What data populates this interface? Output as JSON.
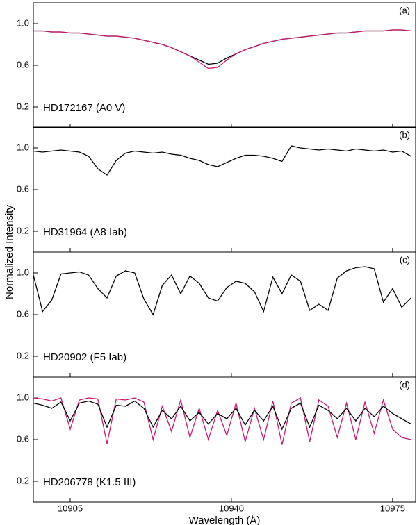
{
  "shared": {
    "ylabel": "Normalized Intensity",
    "xlabel": "Wavelength (Å)"
  },
  "chart_data": [
    {
      "type": "line",
      "annotation": "(a)",
      "label": "HD172167 (A0 V)",
      "x": [
        10897,
        10899,
        10901,
        10903,
        10905,
        10907,
        10909,
        10911,
        10913,
        10915,
        10917,
        10919,
        10921,
        10923,
        10925,
        10927,
        10929,
        10931,
        10933,
        10935,
        10937,
        10939,
        10941,
        10943,
        10945,
        10947,
        10949,
        10951,
        10953,
        10955,
        10957,
        10959,
        10961,
        10963,
        10965,
        10967,
        10969,
        10971,
        10973,
        10975,
        10977,
        10979
      ],
      "series": [
        {
          "color": "#000000",
          "values": [
            0.93,
            0.93,
            0.92,
            0.92,
            0.91,
            0.91,
            0.9,
            0.89,
            0.88,
            0.88,
            0.87,
            0.86,
            0.84,
            0.82,
            0.8,
            0.77,
            0.73,
            0.69,
            0.65,
            0.61,
            0.62,
            0.67,
            0.71,
            0.75,
            0.78,
            0.81,
            0.83,
            0.85,
            0.86,
            0.87,
            0.88,
            0.89,
            0.9,
            0.91,
            0.91,
            0.92,
            0.93,
            0.93,
            0.93,
            0.94,
            0.94,
            0.93
          ]
        },
        {
          "color": "#c8186e",
          "values": [
            0.93,
            0.93,
            0.92,
            0.92,
            0.91,
            0.91,
            0.9,
            0.89,
            0.88,
            0.88,
            0.87,
            0.86,
            0.84,
            0.82,
            0.8,
            0.77,
            0.73,
            0.69,
            0.63,
            0.57,
            0.58,
            0.65,
            0.71,
            0.75,
            0.78,
            0.81,
            0.83,
            0.85,
            0.86,
            0.87,
            0.88,
            0.89,
            0.9,
            0.91,
            0.91,
            0.92,
            0.93,
            0.93,
            0.93,
            0.94,
            0.94,
            0.93
          ]
        }
      ],
      "xlim": [
        10897,
        10980
      ],
      "ylim": [
        0,
        1.2
      ],
      "yticks": [
        0.2,
        0.6,
        {
          "value": 1.0,
          "label": "1.0"
        }
      ]
    },
    {
      "type": "line",
      "annotation": "(b)",
      "label": "HD31964 (A8 Iab)",
      "x": [
        10897,
        10899,
        10901,
        10903,
        10905,
        10907,
        10909,
        10911,
        10913,
        10915,
        10917,
        10919,
        10921,
        10923,
        10925,
        10927,
        10929,
        10931,
        10933,
        10935,
        10937,
        10939,
        10941,
        10943,
        10945,
        10947,
        10949,
        10951,
        10953,
        10955,
        10957,
        10959,
        10961,
        10963,
        10965,
        10967,
        10969,
        10971,
        10973,
        10975,
        10977,
        10979
      ],
      "series": [
        {
          "color": "#000000",
          "values": [
            0.97,
            0.96,
            0.97,
            0.98,
            0.97,
            0.96,
            0.92,
            0.8,
            0.74,
            0.88,
            0.95,
            0.97,
            0.96,
            0.95,
            0.96,
            0.94,
            0.93,
            0.9,
            0.88,
            0.84,
            0.82,
            0.86,
            0.9,
            0.93,
            0.93,
            0.92,
            0.9,
            0.87,
            1.02,
            1.0,
            0.99,
            0.98,
            0.99,
            0.98,
            0.97,
            0.99,
            0.98,
            0.97,
            0.98,
            0.96,
            0.97,
            0.92
          ]
        }
      ],
      "xlim": [
        10897,
        10980
      ],
      "ylim": [
        0,
        1.2
      ],
      "yticks": [
        0.2,
        0.6,
        {
          "value": 1.0,
          "label": "1.0"
        }
      ]
    },
    {
      "type": "line",
      "annotation": "(c)",
      "label": "HD20902 (F5 Iab)",
      "x": [
        10897,
        10899,
        10901,
        10903,
        10905,
        10907,
        10909,
        10911,
        10913,
        10915,
        10917,
        10919,
        10921,
        10923,
        10925,
        10927,
        10929,
        10931,
        10933,
        10935,
        10937,
        10939,
        10941,
        10943,
        10945,
        10947,
        10949,
        10951,
        10953,
        10955,
        10957,
        10959,
        10961,
        10963,
        10965,
        10967,
        10969,
        10971,
        10973,
        10975,
        10977,
        10979
      ],
      "series": [
        {
          "color": "#000000",
          "values": [
            0.98,
            0.63,
            0.74,
            0.99,
            1.0,
            1.01,
            0.98,
            0.85,
            0.76,
            0.97,
            1.02,
            1.0,
            0.75,
            0.6,
            0.88,
            0.98,
            0.8,
            0.97,
            0.9,
            0.76,
            0.73,
            0.86,
            0.92,
            0.9,
            0.82,
            0.63,
            0.96,
            0.8,
            0.98,
            0.92,
            0.64,
            0.7,
            0.64,
            0.95,
            1.02,
            1.05,
            1.06,
            1.04,
            0.72,
            0.85,
            0.67,
            0.76
          ]
        }
      ],
      "xlim": [
        10897,
        10980
      ],
      "ylim": [
        0,
        1.2
      ],
      "yticks": [
        0.2,
        0.6,
        {
          "value": 1.0,
          "label": "1.0"
        }
      ]
    },
    {
      "type": "line",
      "annotation": "(d)",
      "label": "HD206778 (K1.5 III)",
      "x": [
        10897,
        10899,
        10901,
        10903,
        10905,
        10907,
        10909,
        10911,
        10913,
        10915,
        10917,
        10919,
        10921,
        10923,
        10925,
        10927,
        10929,
        10931,
        10933,
        10935,
        10937,
        10939,
        10941,
        10943,
        10945,
        10947,
        10949,
        10951,
        10953,
        10955,
        10957,
        10959,
        10961,
        10963,
        10965,
        10967,
        10969,
        10971,
        10973,
        10975,
        10977,
        10979
      ],
      "series": [
        {
          "color": "#c8186e",
          "values": [
            1.0,
            0.99,
            0.97,
            1.0,
            0.7,
            0.98,
            1.0,
            0.99,
            0.56,
            0.99,
            0.98,
            1.0,
            0.96,
            0.6,
            0.92,
            0.68,
            0.98,
            0.62,
            0.9,
            0.6,
            0.88,
            0.64,
            0.95,
            0.58,
            0.9,
            0.6,
            0.97,
            0.55,
            0.95,
            1.0,
            0.58,
            0.98,
            0.92,
            0.62,
            0.95,
            0.6,
            0.96,
            0.66,
            0.98,
            0.7,
            0.62,
            0.6
          ]
        },
        {
          "color": "#000000",
          "values": [
            0.95,
            0.93,
            0.9,
            0.96,
            0.78,
            0.95,
            0.97,
            0.94,
            0.72,
            0.93,
            0.92,
            0.97,
            0.9,
            0.72,
            0.88,
            0.8,
            0.92,
            0.78,
            0.86,
            0.75,
            0.85,
            0.8,
            0.9,
            0.74,
            0.88,
            0.78,
            0.92,
            0.7,
            0.9,
            0.95,
            0.72,
            0.93,
            0.88,
            0.8,
            0.9,
            0.78,
            0.9,
            0.82,
            0.92,
            0.85,
            0.8,
            0.75
          ]
        }
      ],
      "xlim": [
        10897,
        10980
      ],
      "ylim": [
        0,
        1.2
      ],
      "yticks": [
        0.2,
        0.6,
        {
          "value": 1.0,
          "label": "1.0"
        }
      ],
      "xticks": [
        10905,
        10940,
        10975
      ]
    }
  ]
}
